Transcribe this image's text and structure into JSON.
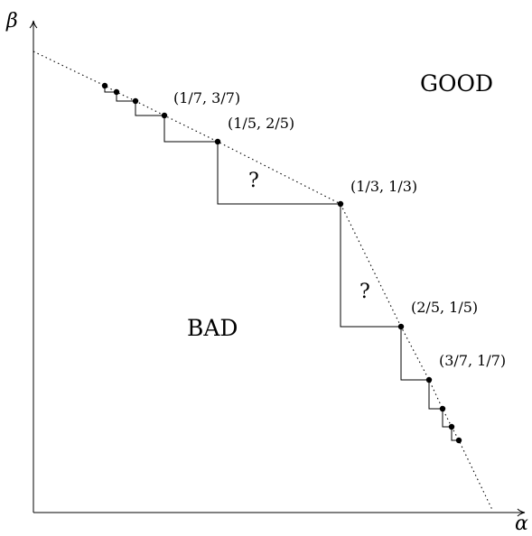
{
  "axes": {
    "x_label": "α",
    "y_label": "β"
  },
  "regions": {
    "good": "GOOD",
    "bad": "BAD"
  },
  "unknown_marks": [
    "?",
    "?"
  ],
  "points": [
    {
      "label": "(1/7, 3/7)",
      "alpha": "1/7",
      "beta": "3/7"
    },
    {
      "label": "(1/5, 2/5)",
      "alpha": "1/5",
      "beta": "2/5"
    },
    {
      "label": "(1/3, 1/3)",
      "alpha": "1/3",
      "beta": "1/3"
    },
    {
      "label": "(2/5, 1/5)",
      "alpha": "2/5",
      "beta": "1/5"
    },
    {
      "label": "(3/7, 1/7)",
      "alpha": "3/7",
      "beta": "1/7"
    }
  ],
  "colors": {
    "ink": "#000000",
    "background": "#ffffff"
  }
}
